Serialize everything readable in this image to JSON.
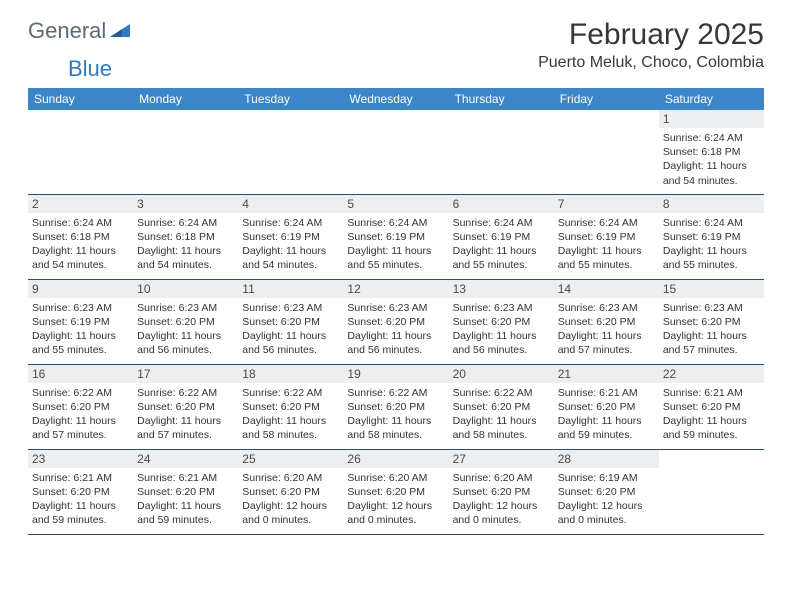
{
  "brand": {
    "word1": "General",
    "word2": "Blue"
  },
  "title": "February 2025",
  "location": "Puerto Meluk, Choco, Colombia",
  "colors": {
    "header_bg": "#3a86c8",
    "header_text": "#ffffff",
    "daynum_bg": "#eceeef",
    "border": "#2a4d6e",
    "logo_gray": "#5a6b78",
    "logo_blue": "#2f7bc2",
    "text": "#333333"
  },
  "weekdays": [
    "Sunday",
    "Monday",
    "Tuesday",
    "Wednesday",
    "Thursday",
    "Friday",
    "Saturday"
  ],
  "first_weekday_index": 6,
  "days": [
    {
      "n": 1,
      "sunrise": "6:24 AM",
      "sunset": "6:18 PM",
      "daylight_h": 11,
      "daylight_m": 54
    },
    {
      "n": 2,
      "sunrise": "6:24 AM",
      "sunset": "6:18 PM",
      "daylight_h": 11,
      "daylight_m": 54
    },
    {
      "n": 3,
      "sunrise": "6:24 AM",
      "sunset": "6:18 PM",
      "daylight_h": 11,
      "daylight_m": 54
    },
    {
      "n": 4,
      "sunrise": "6:24 AM",
      "sunset": "6:19 PM",
      "daylight_h": 11,
      "daylight_m": 54
    },
    {
      "n": 5,
      "sunrise": "6:24 AM",
      "sunset": "6:19 PM",
      "daylight_h": 11,
      "daylight_m": 55
    },
    {
      "n": 6,
      "sunrise": "6:24 AM",
      "sunset": "6:19 PM",
      "daylight_h": 11,
      "daylight_m": 55
    },
    {
      "n": 7,
      "sunrise": "6:24 AM",
      "sunset": "6:19 PM",
      "daylight_h": 11,
      "daylight_m": 55
    },
    {
      "n": 8,
      "sunrise": "6:24 AM",
      "sunset": "6:19 PM",
      "daylight_h": 11,
      "daylight_m": 55
    },
    {
      "n": 9,
      "sunrise": "6:23 AM",
      "sunset": "6:19 PM",
      "daylight_h": 11,
      "daylight_m": 55
    },
    {
      "n": 10,
      "sunrise": "6:23 AM",
      "sunset": "6:20 PM",
      "daylight_h": 11,
      "daylight_m": 56
    },
    {
      "n": 11,
      "sunrise": "6:23 AM",
      "sunset": "6:20 PM",
      "daylight_h": 11,
      "daylight_m": 56
    },
    {
      "n": 12,
      "sunrise": "6:23 AM",
      "sunset": "6:20 PM",
      "daylight_h": 11,
      "daylight_m": 56
    },
    {
      "n": 13,
      "sunrise": "6:23 AM",
      "sunset": "6:20 PM",
      "daylight_h": 11,
      "daylight_m": 56
    },
    {
      "n": 14,
      "sunrise": "6:23 AM",
      "sunset": "6:20 PM",
      "daylight_h": 11,
      "daylight_m": 57
    },
    {
      "n": 15,
      "sunrise": "6:23 AM",
      "sunset": "6:20 PM",
      "daylight_h": 11,
      "daylight_m": 57
    },
    {
      "n": 16,
      "sunrise": "6:22 AM",
      "sunset": "6:20 PM",
      "daylight_h": 11,
      "daylight_m": 57
    },
    {
      "n": 17,
      "sunrise": "6:22 AM",
      "sunset": "6:20 PM",
      "daylight_h": 11,
      "daylight_m": 57
    },
    {
      "n": 18,
      "sunrise": "6:22 AM",
      "sunset": "6:20 PM",
      "daylight_h": 11,
      "daylight_m": 58
    },
    {
      "n": 19,
      "sunrise": "6:22 AM",
      "sunset": "6:20 PM",
      "daylight_h": 11,
      "daylight_m": 58
    },
    {
      "n": 20,
      "sunrise": "6:22 AM",
      "sunset": "6:20 PM",
      "daylight_h": 11,
      "daylight_m": 58
    },
    {
      "n": 21,
      "sunrise": "6:21 AM",
      "sunset": "6:20 PM",
      "daylight_h": 11,
      "daylight_m": 59
    },
    {
      "n": 22,
      "sunrise": "6:21 AM",
      "sunset": "6:20 PM",
      "daylight_h": 11,
      "daylight_m": 59
    },
    {
      "n": 23,
      "sunrise": "6:21 AM",
      "sunset": "6:20 PM",
      "daylight_h": 11,
      "daylight_m": 59
    },
    {
      "n": 24,
      "sunrise": "6:21 AM",
      "sunset": "6:20 PM",
      "daylight_h": 11,
      "daylight_m": 59
    },
    {
      "n": 25,
      "sunrise": "6:20 AM",
      "sunset": "6:20 PM",
      "daylight_h": 12,
      "daylight_m": 0
    },
    {
      "n": 26,
      "sunrise": "6:20 AM",
      "sunset": "6:20 PM",
      "daylight_h": 12,
      "daylight_m": 0
    },
    {
      "n": 27,
      "sunrise": "6:20 AM",
      "sunset": "6:20 PM",
      "daylight_h": 12,
      "daylight_m": 0
    },
    {
      "n": 28,
      "sunrise": "6:19 AM",
      "sunset": "6:20 PM",
      "daylight_h": 12,
      "daylight_m": 0
    }
  ],
  "labels": {
    "sunrise": "Sunrise",
    "sunset": "Sunset",
    "daylight_prefix": "Daylight",
    "hours_word": "hours",
    "and_word": "and",
    "minutes_word": "minutes."
  }
}
